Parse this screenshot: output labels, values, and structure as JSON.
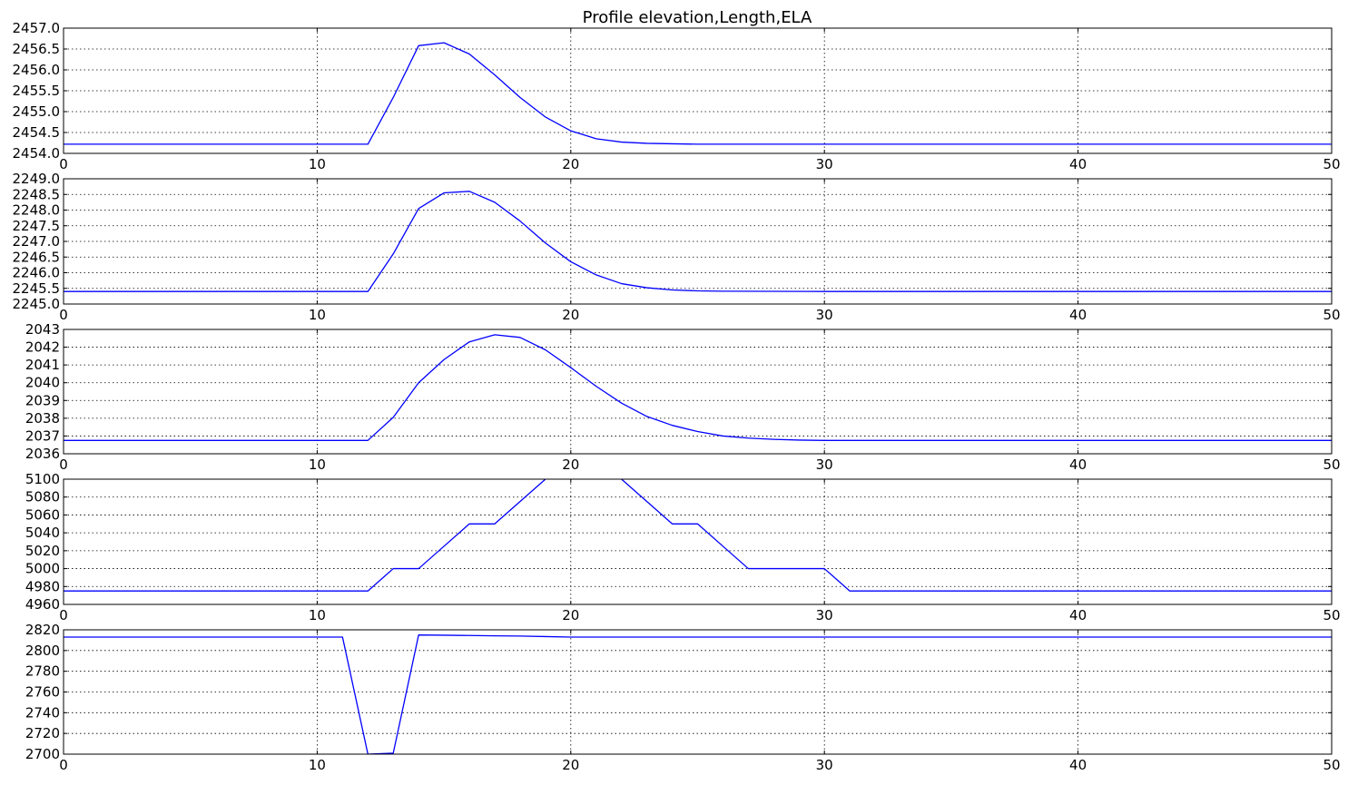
{
  "figure": {
    "title": "Profile elevation,Length,ELA"
  },
  "style": {
    "line_color": "#0000ff",
    "grid_color": "#000000",
    "background": "#ffffff"
  },
  "chart_data": [
    {
      "type": "line",
      "xlim": [
        0,
        50
      ],
      "ylim": [
        2454.0,
        2457.0
      ],
      "grid": true,
      "xticks": [
        0,
        10,
        20,
        30,
        40,
        50
      ],
      "yticks": [
        "2454.0",
        "2454.5",
        "2455.0",
        "2455.5",
        "2456.0",
        "2456.5",
        "2457.0"
      ],
      "series": [
        {
          "x": [
            0,
            12,
            13,
            14,
            15,
            16,
            17,
            18,
            19,
            20,
            21,
            22,
            23,
            24,
            25,
            30,
            40,
            50
          ],
          "y": [
            2454.22,
            2454.22,
            2455.34,
            2456.58,
            2456.65,
            2456.38,
            2455.88,
            2455.34,
            2454.87,
            2454.54,
            2454.35,
            2454.27,
            2454.24,
            2454.23,
            2454.22,
            2454.22,
            2454.22,
            2454.22
          ]
        }
      ]
    },
    {
      "type": "line",
      "xlim": [
        0,
        50
      ],
      "ylim": [
        2245.0,
        2249.0
      ],
      "grid": true,
      "xticks": [
        0,
        10,
        20,
        30,
        40,
        50
      ],
      "yticks": [
        "2245.0",
        "2245.5",
        "2246.0",
        "2246.5",
        "2247.0",
        "2247.5",
        "2248.0",
        "2248.5",
        "2249.0"
      ],
      "series": [
        {
          "x": [
            0,
            12,
            13,
            14,
            15,
            16,
            17,
            18,
            19,
            20,
            21,
            22,
            23,
            24,
            25,
            26,
            30,
            40,
            50
          ],
          "y": [
            2245.4,
            2245.4,
            2246.6,
            2248.05,
            2248.55,
            2248.6,
            2248.25,
            2247.65,
            2246.95,
            2246.35,
            2245.93,
            2245.65,
            2245.52,
            2245.45,
            2245.42,
            2245.41,
            2245.4,
            2245.4,
            2245.4
          ]
        }
      ]
    },
    {
      "type": "line",
      "xlim": [
        0,
        50
      ],
      "ylim": [
        2036,
        2043
      ],
      "grid": true,
      "xticks": [
        0,
        10,
        20,
        30,
        40,
        50
      ],
      "yticks": [
        "2036",
        "2037",
        "2038",
        "2039",
        "2040",
        "2041",
        "2042",
        "2043"
      ],
      "series": [
        {
          "x": [
            0,
            12,
            13,
            14,
            15,
            16,
            17,
            18,
            19,
            20,
            21,
            22,
            23,
            24,
            25,
            26,
            27,
            28,
            29,
            30,
            40,
            50
          ],
          "y": [
            2036.75,
            2036.75,
            2038.05,
            2040.0,
            2041.3,
            2042.3,
            2042.7,
            2042.55,
            2041.85,
            2040.85,
            2039.8,
            2038.85,
            2038.1,
            2037.6,
            2037.25,
            2037.0,
            2036.88,
            2036.81,
            2036.77,
            2036.75,
            2036.75,
            2036.75
          ]
        }
      ]
    },
    {
      "type": "line",
      "xlim": [
        0,
        50
      ],
      "ylim": [
        4960,
        5100
      ],
      "grid": true,
      "xticks": [
        0,
        10,
        20,
        30,
        40,
        50
      ],
      "yticks": [
        "4960",
        "4980",
        "5000",
        "5020",
        "5040",
        "5060",
        "5080",
        "5100"
      ],
      "series": [
        {
          "x": [
            0,
            12,
            13,
            14,
            15,
            16,
            17,
            18,
            19,
            20,
            21,
            22,
            23,
            24,
            25,
            26,
            27,
            28,
            29,
            30,
            31,
            40,
            50
          ],
          "y": [
            4975,
            4975,
            5000,
            5000,
            5025,
            5050,
            5050,
            5075,
            5100,
            5125,
            5125,
            5100,
            5075,
            5050,
            5050,
            5025,
            5000,
            5000,
            5000,
            5000,
            4975,
            4975,
            4975
          ]
        }
      ]
    },
    {
      "type": "line",
      "xlim": [
        0,
        50
      ],
      "ylim": [
        2700,
        2820
      ],
      "grid": true,
      "xticks": [
        0,
        10,
        20,
        30,
        40,
        50
      ],
      "yticks": [
        "2700",
        "2720",
        "2740",
        "2760",
        "2780",
        "2800",
        "2820"
      ],
      "series": [
        {
          "x": [
            0,
            11,
            12,
            13,
            14,
            15,
            16,
            17,
            18,
            19,
            20,
            30,
            40,
            50
          ],
          "y": [
            2813,
            2813,
            2700,
            2701,
            2815,
            2814.8,
            2814.5,
            2814.2,
            2814,
            2813.5,
            2813,
            2813,
            2813,
            2813
          ]
        }
      ]
    }
  ]
}
